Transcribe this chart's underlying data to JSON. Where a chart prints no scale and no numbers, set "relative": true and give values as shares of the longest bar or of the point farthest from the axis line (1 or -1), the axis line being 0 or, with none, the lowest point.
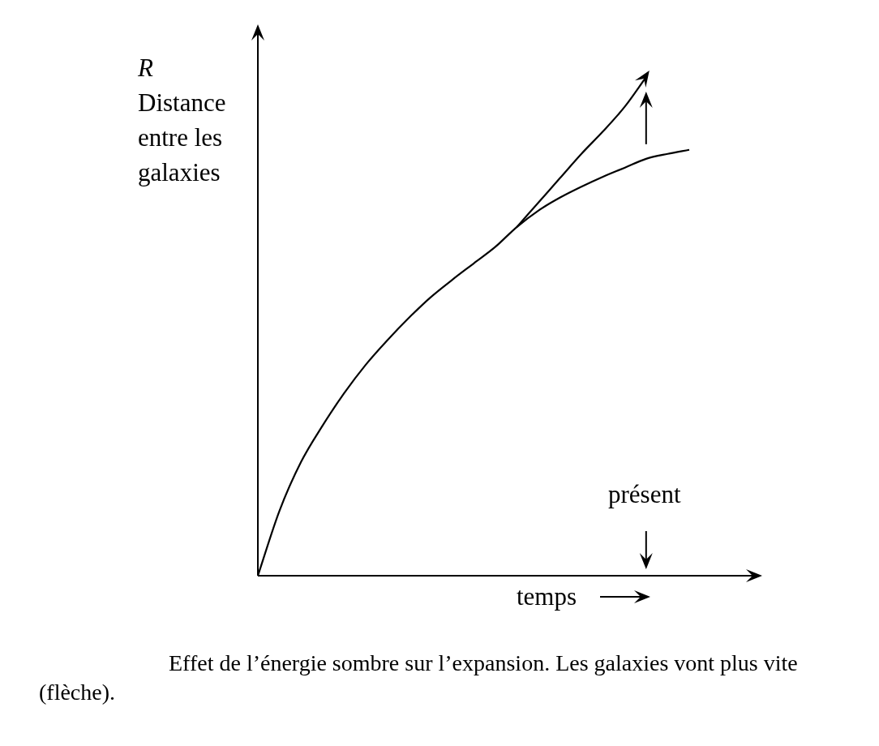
{
  "chart_data": {
    "type": "line",
    "relative": true,
    "ylabel": "R\nDistance entre les galaxies",
    "xlabel": "temps",
    "legend": false,
    "marker": "none",
    "categories": [
      null,
      null,
      null,
      null,
      null,
      null,
      null,
      null,
      null,
      null,
      null,
      null,
      null,
      null,
      null,
      null,
      null,
      null,
      null,
      null,
      null
    ],
    "series": [
      {
        "color": "#000000",
        "values": [
          0,
          0.13,
          0.228,
          0.301,
          0.366,
          0.423,
          0.472,
          0.517,
          0.558,
          0.593,
          0.626,
          0.659,
          0.699,
          0.732,
          0.758,
          0.78,
          0.8,
          0.818,
          0.836,
          0.846,
          0.854
        ]
      },
      {
        "color": "#000000",
        "values": [
          null,
          null,
          null,
          null,
          null,
          null,
          null,
          null,
          null,
          null,
          null,
          null,
          0.699,
          0.748,
          0.797,
          0.846,
          0.891,
          0.94,
          1,
          null,
          null
        ]
      }
    ],
    "annotations": [
      "présent",
      "Effet de l’énergie sombre sur l’expansion. Les galaxies vont plus vite (flèche)."
    ]
  }
}
